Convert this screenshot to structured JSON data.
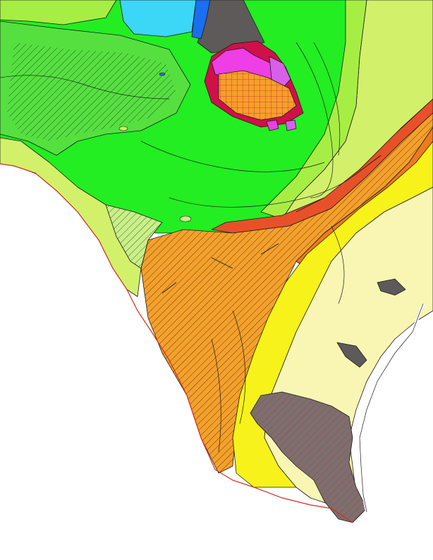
{
  "map": {
    "colors": {
      "background_white": "#ffffff",
      "green_bright": "#22ee22",
      "green_mid": "#55e040",
      "green_light": "#a6ee44",
      "yellow_green": "#d2f06a",
      "pale_green": "#c8f088",
      "yellow": "#f6f21a",
      "pale_yellow": "#f9f6b4",
      "orange": "#f5a02a",
      "dark_orange": "#ee7a1e",
      "red_orange": "#e8502a",
      "gray_dark": "#5e5a5a",
      "gray_outcrop": "#7a7070",
      "light_blue": "#3cd6f6",
      "blue": "#1a6ef2",
      "magenta": "#ee3ee6",
      "crimson": "#d0104a",
      "pink_violet": "#d860e8",
      "hatch_line": "#1a1a1a",
      "coast_line": "#d03020"
    },
    "units": [
      {
        "id": "northwest-green-plateau",
        "color": "green_mid",
        "hatched": true
      },
      {
        "id": "north-bright-green-hills",
        "color": "green_bright",
        "hatched": false
      },
      {
        "id": "northeast-green-belt",
        "color": "green_bright",
        "hatched": false
      },
      {
        "id": "east-yellow-green-belt",
        "color": "yellow_green",
        "hatched": false
      },
      {
        "id": "central-orange-hatched-plain",
        "color": "orange",
        "hatched": true
      },
      {
        "id": "eastern-yellow-belt",
        "color": "yellow",
        "hatched": false
      },
      {
        "id": "coastal-pale-yellow-plain",
        "color": "pale_yellow",
        "hatched": false
      },
      {
        "id": "southern-gray-sand-sheet",
        "color": "gray_outcrop",
        "hatched": true
      },
      {
        "id": "north-blue-lakes",
        "color": "light_blue",
        "hatched": false
      },
      {
        "id": "uplift-magenta-core",
        "color": "magenta",
        "hatched": false
      }
    ]
  }
}
